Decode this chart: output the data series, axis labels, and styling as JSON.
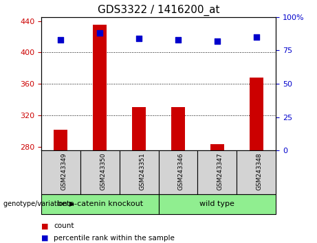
{
  "title": "GDS3322 / 1416200_at",
  "samples": [
    "GSM243349",
    "GSM243350",
    "GSM243351",
    "GSM243346",
    "GSM243347",
    "GSM243348"
  ],
  "counts": [
    302,
    435,
    330,
    330,
    283,
    368
  ],
  "percentiles": [
    83,
    88,
    84,
    83,
    82,
    85
  ],
  "ylim_left": [
    275,
    445
  ],
  "ylim_right": [
    0,
    100
  ],
  "yticks_left": [
    280,
    320,
    360,
    400,
    440
  ],
  "yticks_right": [
    0,
    25,
    50,
    75,
    100
  ],
  "bar_color": "#cc0000",
  "dot_color": "#0000cc",
  "bar_width": 0.35,
  "group_configs": [
    {
      "indices": [
        0,
        1,
        2
      ],
      "label": "beta-catenin knockout"
    },
    {
      "indices": [
        3,
        4,
        5
      ],
      "label": "wild type"
    }
  ],
  "group_label": "genotype/variation",
  "legend_count": "count",
  "legend_percentile": "percentile rank within the sample",
  "axis_color_left": "#cc0000",
  "axis_color_right": "#0000cc",
  "background_plot": "#ffffff",
  "background_sample": "#d3d3d3",
  "background_group": "#90ee90"
}
